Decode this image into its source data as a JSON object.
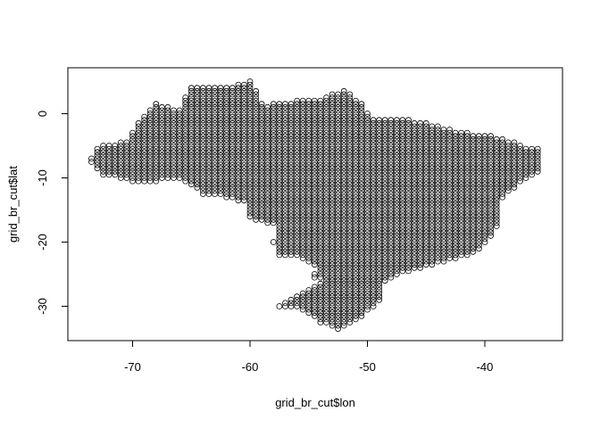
{
  "chart_data": {
    "type": "scatter",
    "title": "",
    "xlabel": "grid_br_cut$lon",
    "ylabel": "grid_br_cut$lat",
    "xlim": [
      -75,
      -33
    ],
    "ylim": [
      -35,
      6
    ],
    "x_ticks": [
      -70,
      -60,
      -50,
      -40
    ],
    "y_ticks": [
      0,
      -10,
      -20,
      -30
    ],
    "x_tick_labels": [
      "-70",
      "-60",
      "-50",
      "-40"
    ],
    "y_tick_labels": [
      "0",
      "-10",
      "-20",
      "-30"
    ],
    "grid": false,
    "legend": "none",
    "point_style": "open circle",
    "point_color": "#000000",
    "x_step": 0.5,
    "y_step": 0.5,
    "region_outline_lon_lat": [
      [
        -73.8,
        -7.5
      ],
      [
        -72.8,
        -5.0
      ],
      [
        -70.5,
        -4.3
      ],
      [
        -69.5,
        -1.3
      ],
      [
        -68.0,
        1.6
      ],
      [
        -66.0,
        0.8
      ],
      [
        -65.0,
        4.2
      ],
      [
        -62.5,
        4.0
      ],
      [
        -60.0,
        5.2
      ],
      [
        -58.8,
        1.3
      ],
      [
        -56.0,
        2.0
      ],
      [
        -54.0,
        2.3
      ],
      [
        -52.0,
        3.8
      ],
      [
        -50.5,
        1.8
      ],
      [
        -49.5,
        -0.8
      ],
      [
        -46.0,
        -1.0
      ],
      [
        -42.0,
        -2.8
      ],
      [
        -39.0,
        -3.5
      ],
      [
        -37.0,
        -4.8
      ],
      [
        -35.2,
        -5.6
      ],
      [
        -35.0,
        -9.0
      ],
      [
        -37.0,
        -11.0
      ],
      [
        -38.8,
        -13.5
      ],
      [
        -39.0,
        -17.8
      ],
      [
        -40.5,
        -21.5
      ],
      [
        -43.0,
        -23.0
      ],
      [
        -45.0,
        -23.8
      ],
      [
        -47.0,
        -25.0
      ],
      [
        -48.5,
        -26.5
      ],
      [
        -48.5,
        -28.6
      ],
      [
        -50.0,
        -31.0
      ],
      [
        -52.5,
        -33.7
      ],
      [
        -54.0,
        -32.5
      ],
      [
        -55.5,
        -30.5
      ],
      [
        -57.8,
        -30.2
      ],
      [
        -55.5,
        -27.8
      ],
      [
        -53.8,
        -26.0
      ],
      [
        -54.6,
        -25.5
      ],
      [
        -54.3,
        -24.0
      ],
      [
        -55.5,
        -22.5
      ],
      [
        -57.8,
        -22.0
      ],
      [
        -58.0,
        -20.0
      ],
      [
        -57.8,
        -17.5
      ],
      [
        -60.0,
        -16.3
      ],
      [
        -60.2,
        -14.0
      ],
      [
        -62.0,
        -13.0
      ],
      [
        -64.0,
        -12.5
      ],
      [
        -65.4,
        -11.0
      ],
      [
        -66.0,
        -10.0
      ],
      [
        -69.0,
        -11.0
      ],
      [
        -72.5,
        -9.5
      ]
    ]
  }
}
